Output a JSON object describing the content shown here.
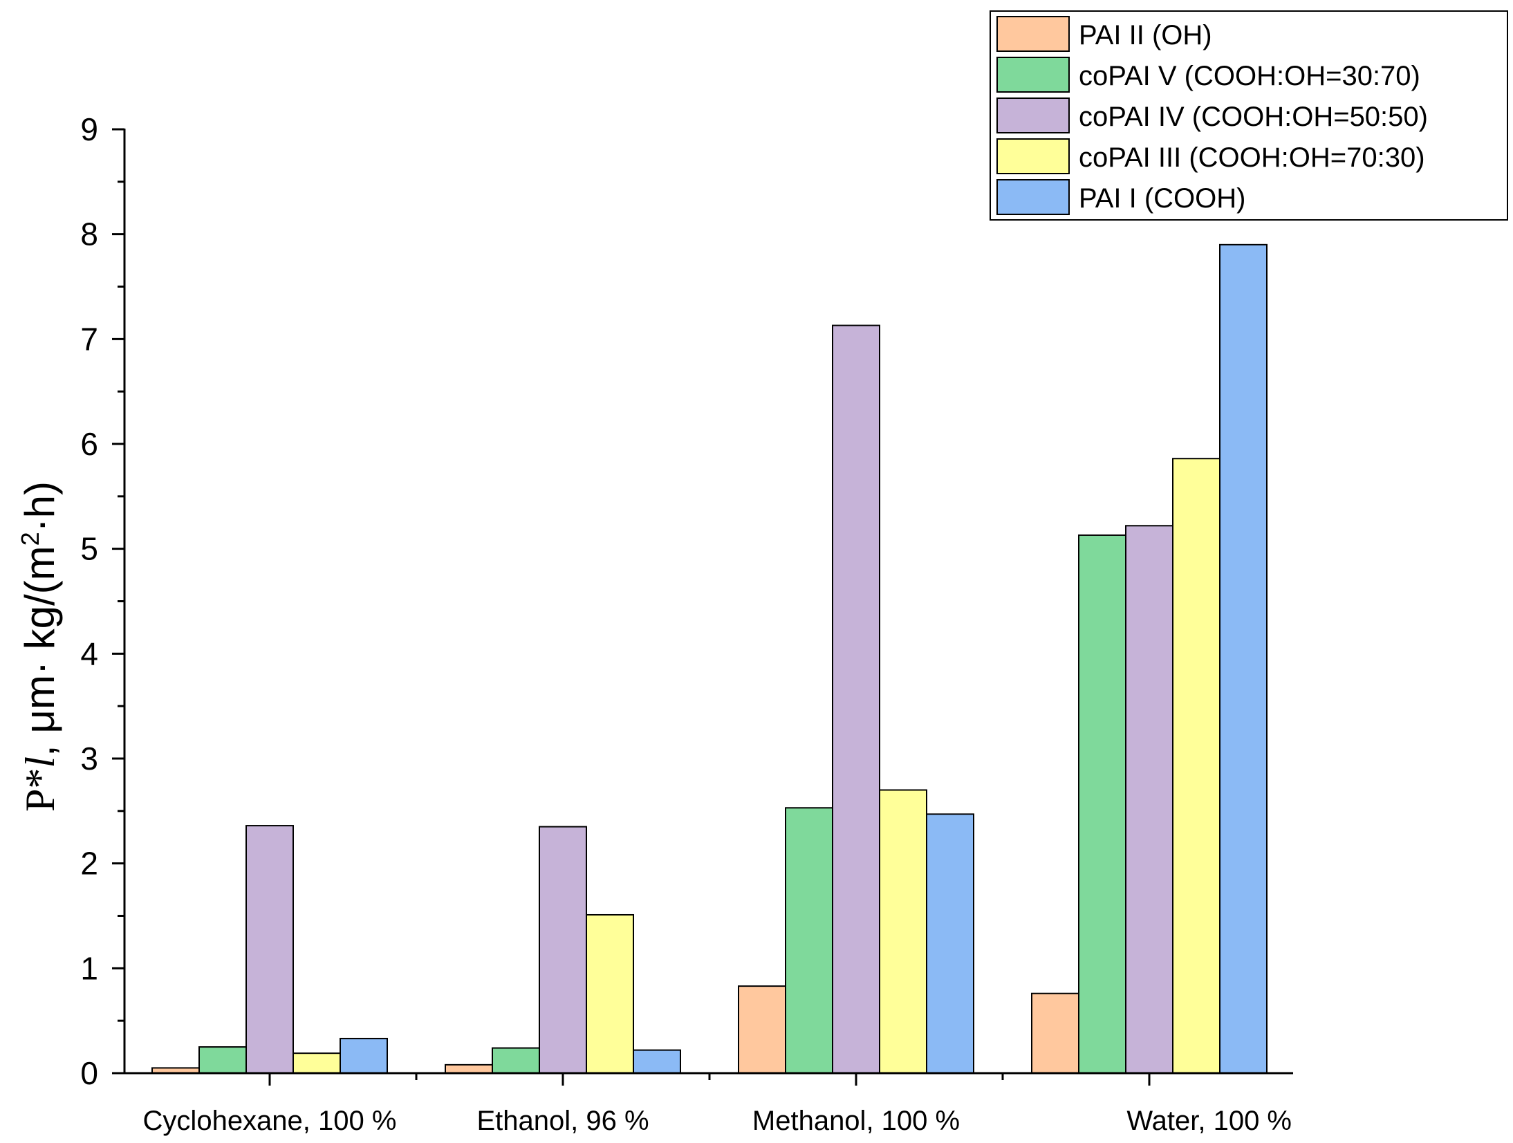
{
  "chart_data": {
    "type": "bar",
    "title": "",
    "xlabel": "",
    "ylabel": {
      "prefix": "P*",
      "italic": "l",
      "units": ", μm· kg/(m",
      "sup": "2",
      "suffix": "·h)"
    },
    "ylim": [
      0,
      9
    ],
    "yticks": [
      "0",
      "1",
      "2",
      "3",
      "4",
      "5",
      "6",
      "7",
      "8",
      "9"
    ],
    "categories": [
      "Cyclohexane, 100 %",
      "Ethanol, 96 %",
      "Methanol, 100 %",
      "Water, 100 %"
    ],
    "legend_position": "top-right",
    "series": [
      {
        "name": "PAI II (OH)",
        "color": "#FFC89E",
        "values": [
          0.05,
          0.08,
          0.83,
          0.76
        ]
      },
      {
        "name": "coPAI V (COOH:OH=30:70)",
        "color": "#7FD99B",
        "values": [
          0.25,
          0.24,
          2.53,
          5.13
        ]
      },
      {
        "name": "coPAI IV (COOH:OH=50:50)",
        "color": "#C6B3D8",
        "values": [
          2.36,
          2.35,
          7.13,
          5.22
        ]
      },
      {
        "name": "coPAI III (COOH:OH=70:30)",
        "color": "#FFFF99",
        "values": [
          0.19,
          1.51,
          2.7,
          5.86
        ]
      },
      {
        "name": "PAI I (COOH)",
        "color": "#8BBAF5",
        "values": [
          0.33,
          0.22,
          2.47,
          7.9
        ]
      }
    ]
  }
}
